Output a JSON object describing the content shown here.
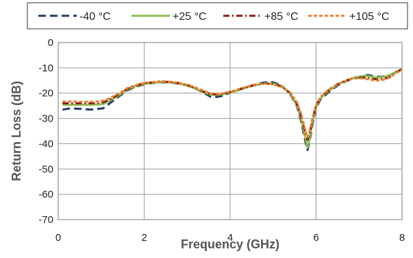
{
  "chart_data": {
    "type": "line",
    "title": "",
    "xlabel": "Frequency (GHz)",
    "ylabel": "Return Loss (dB)",
    "xlim": [
      0,
      8
    ],
    "ylim": [
      -70,
      0
    ],
    "xticks": [
      0,
      2,
      4,
      6,
      8
    ],
    "yticks": [
      0,
      -10,
      -20,
      -30,
      -40,
      -50,
      -60,
      -70
    ],
    "grid": true,
    "legend": "top",
    "series": [
      {
        "name": "-40 °C",
        "color": "#1f3864",
        "dash": "long-dash",
        "points": [
          [
            0.1,
            -26.5
          ],
          [
            0.3,
            -26.0
          ],
          [
            0.5,
            -26.2
          ],
          [
            0.75,
            -26.5
          ],
          [
            0.9,
            -26.3
          ],
          [
            1.05,
            -26.0
          ],
          [
            1.2,
            -24.0
          ],
          [
            1.4,
            -21.5
          ],
          [
            1.6,
            -19.0
          ],
          [
            1.8,
            -17.5
          ],
          [
            2.0,
            -16.5
          ],
          [
            2.2,
            -16.0
          ],
          [
            2.4,
            -15.7
          ],
          [
            2.6,
            -15.8
          ],
          [
            2.8,
            -16.3
          ],
          [
            3.0,
            -17.0
          ],
          [
            3.2,
            -18.3
          ],
          [
            3.4,
            -20.0
          ],
          [
            3.55,
            -21.5
          ],
          [
            3.7,
            -21.5
          ],
          [
            3.85,
            -21.0
          ],
          [
            4.0,
            -19.8
          ],
          [
            4.2,
            -18.5
          ],
          [
            4.4,
            -17.5
          ],
          [
            4.6,
            -16.5
          ],
          [
            4.8,
            -15.8
          ],
          [
            4.95,
            -15.6
          ],
          [
            5.05,
            -16.0
          ],
          [
            5.2,
            -17.0
          ],
          [
            5.4,
            -20.5
          ],
          [
            5.55,
            -25.0
          ],
          [
            5.65,
            -31.0
          ],
          [
            5.75,
            -39.0
          ],
          [
            5.8,
            -42.5
          ],
          [
            5.85,
            -39.0
          ],
          [
            5.92,
            -32.0
          ],
          [
            6.0,
            -26.0
          ],
          [
            6.1,
            -22.5
          ],
          [
            6.3,
            -19.5
          ],
          [
            6.5,
            -17.0
          ],
          [
            6.7,
            -15.2
          ],
          [
            6.9,
            -14.2
          ],
          [
            7.1,
            -13.3
          ],
          [
            7.2,
            -12.8
          ],
          [
            7.35,
            -13.3
          ],
          [
            7.5,
            -13.6
          ],
          [
            7.7,
            -13.0
          ],
          [
            7.85,
            -11.8
          ],
          [
            8.0,
            -10.5
          ]
        ]
      },
      {
        "name": "+25 °C",
        "color": "#8cbf4f",
        "dash": "solid",
        "points": [
          [
            0.1,
            -24.6
          ],
          [
            0.3,
            -24.6
          ],
          [
            0.5,
            -24.6
          ],
          [
            0.75,
            -24.6
          ],
          [
            0.9,
            -24.5
          ],
          [
            1.05,
            -24.3
          ],
          [
            1.2,
            -23.0
          ],
          [
            1.4,
            -21.0
          ],
          [
            1.6,
            -18.7
          ],
          [
            1.8,
            -17.2
          ],
          [
            2.0,
            -16.3
          ],
          [
            2.2,
            -15.9
          ],
          [
            2.4,
            -15.6
          ],
          [
            2.6,
            -15.8
          ],
          [
            2.8,
            -16.2
          ],
          [
            3.0,
            -17.0
          ],
          [
            3.2,
            -18.3
          ],
          [
            3.4,
            -19.8
          ],
          [
            3.55,
            -20.6
          ],
          [
            3.7,
            -20.7
          ],
          [
            3.85,
            -20.4
          ],
          [
            4.0,
            -19.8
          ],
          [
            4.2,
            -18.8
          ],
          [
            4.4,
            -17.7
          ],
          [
            4.6,
            -16.8
          ],
          [
            4.8,
            -16.2
          ],
          [
            4.95,
            -16.2
          ],
          [
            5.05,
            -16.4
          ],
          [
            5.2,
            -17.2
          ],
          [
            5.4,
            -20.3
          ],
          [
            5.55,
            -24.5
          ],
          [
            5.65,
            -30.0
          ],
          [
            5.75,
            -37.5
          ],
          [
            5.8,
            -41.5
          ],
          [
            5.85,
            -38.0
          ],
          [
            5.92,
            -31.0
          ],
          [
            6.0,
            -25.5
          ],
          [
            6.1,
            -22.0
          ],
          [
            6.3,
            -19.0
          ],
          [
            6.5,
            -16.7
          ],
          [
            6.7,
            -15.0
          ],
          [
            6.9,
            -13.8
          ],
          [
            7.1,
            -13.2
          ],
          [
            7.2,
            -13.2
          ],
          [
            7.35,
            -13.7
          ],
          [
            7.5,
            -13.8
          ],
          [
            7.7,
            -13.0
          ],
          [
            7.85,
            -11.6
          ],
          [
            8.0,
            -10.4
          ]
        ]
      },
      {
        "name": "+85 °C",
        "color": "#8b1a1a",
        "dash": "dash-dot",
        "points": [
          [
            0.1,
            -24.0
          ],
          [
            0.3,
            -24.0
          ],
          [
            0.5,
            -24.0
          ],
          [
            0.75,
            -24.0
          ],
          [
            0.9,
            -23.9
          ],
          [
            1.05,
            -23.6
          ],
          [
            1.2,
            -22.5
          ],
          [
            1.4,
            -20.6
          ],
          [
            1.6,
            -18.4
          ],
          [
            1.8,
            -17.0
          ],
          [
            2.0,
            -16.1
          ],
          [
            2.2,
            -15.7
          ],
          [
            2.4,
            -15.4
          ],
          [
            2.6,
            -15.6
          ],
          [
            2.8,
            -16.0
          ],
          [
            3.0,
            -16.8
          ],
          [
            3.2,
            -18.0
          ],
          [
            3.4,
            -19.5
          ],
          [
            3.55,
            -20.4
          ],
          [
            3.7,
            -20.5
          ],
          [
            3.85,
            -20.2
          ],
          [
            4.0,
            -19.6
          ],
          [
            4.2,
            -18.6
          ],
          [
            4.4,
            -17.6
          ],
          [
            4.6,
            -16.7
          ],
          [
            4.8,
            -16.2
          ],
          [
            4.95,
            -16.3
          ],
          [
            5.05,
            -16.6
          ],
          [
            5.2,
            -17.4
          ],
          [
            5.4,
            -20.0
          ],
          [
            5.55,
            -24.0
          ],
          [
            5.65,
            -29.0
          ],
          [
            5.75,
            -35.5
          ],
          [
            5.8,
            -38.5
          ],
          [
            5.85,
            -36.0
          ],
          [
            5.92,
            -30.0
          ],
          [
            6.0,
            -25.0
          ],
          [
            6.1,
            -21.8
          ],
          [
            6.3,
            -18.7
          ],
          [
            6.5,
            -16.5
          ],
          [
            6.7,
            -15.0
          ],
          [
            6.9,
            -14.0
          ],
          [
            7.1,
            -13.8
          ],
          [
            7.2,
            -14.0
          ],
          [
            7.35,
            -14.5
          ],
          [
            7.5,
            -14.6
          ],
          [
            7.7,
            -13.8
          ],
          [
            7.85,
            -12.0
          ],
          [
            8.0,
            -10.5
          ]
        ]
      },
      {
        "name": "+105 °C",
        "color": "#f07f2a",
        "dash": "short-dash",
        "points": [
          [
            0.1,
            -23.3
          ],
          [
            0.3,
            -23.3
          ],
          [
            0.5,
            -23.4
          ],
          [
            0.75,
            -23.4
          ],
          [
            0.9,
            -23.3
          ],
          [
            1.05,
            -23.0
          ],
          [
            1.2,
            -22.0
          ],
          [
            1.4,
            -20.2
          ],
          [
            1.6,
            -18.1
          ],
          [
            1.8,
            -16.8
          ],
          [
            2.0,
            -16.0
          ],
          [
            2.2,
            -15.6
          ],
          [
            2.4,
            -15.3
          ],
          [
            2.6,
            -15.5
          ],
          [
            2.8,
            -15.9
          ],
          [
            3.0,
            -16.7
          ],
          [
            3.2,
            -17.8
          ],
          [
            3.4,
            -19.2
          ],
          [
            3.55,
            -20.1
          ],
          [
            3.7,
            -20.3
          ],
          [
            3.85,
            -20.0
          ],
          [
            4.0,
            -19.4
          ],
          [
            4.2,
            -18.4
          ],
          [
            4.4,
            -17.4
          ],
          [
            4.6,
            -16.6
          ],
          [
            4.8,
            -16.2
          ],
          [
            4.95,
            -16.4
          ],
          [
            5.05,
            -16.8
          ],
          [
            5.2,
            -17.6
          ],
          [
            5.4,
            -19.8
          ],
          [
            5.55,
            -23.5
          ],
          [
            5.65,
            -28.0
          ],
          [
            5.75,
            -34.5
          ],
          [
            5.8,
            -37.5
          ],
          [
            5.85,
            -35.0
          ],
          [
            5.92,
            -29.5
          ],
          [
            6.0,
            -24.8
          ],
          [
            6.1,
            -21.6
          ],
          [
            6.3,
            -18.5
          ],
          [
            6.5,
            -16.4
          ],
          [
            6.7,
            -15.0
          ],
          [
            6.9,
            -14.2
          ],
          [
            7.1,
            -14.2
          ],
          [
            7.2,
            -14.5
          ],
          [
            7.35,
            -15.0
          ],
          [
            7.5,
            -15.0
          ],
          [
            7.7,
            -14.0
          ],
          [
            7.85,
            -12.2
          ],
          [
            8.0,
            -10.6
          ]
        ]
      }
    ]
  }
}
